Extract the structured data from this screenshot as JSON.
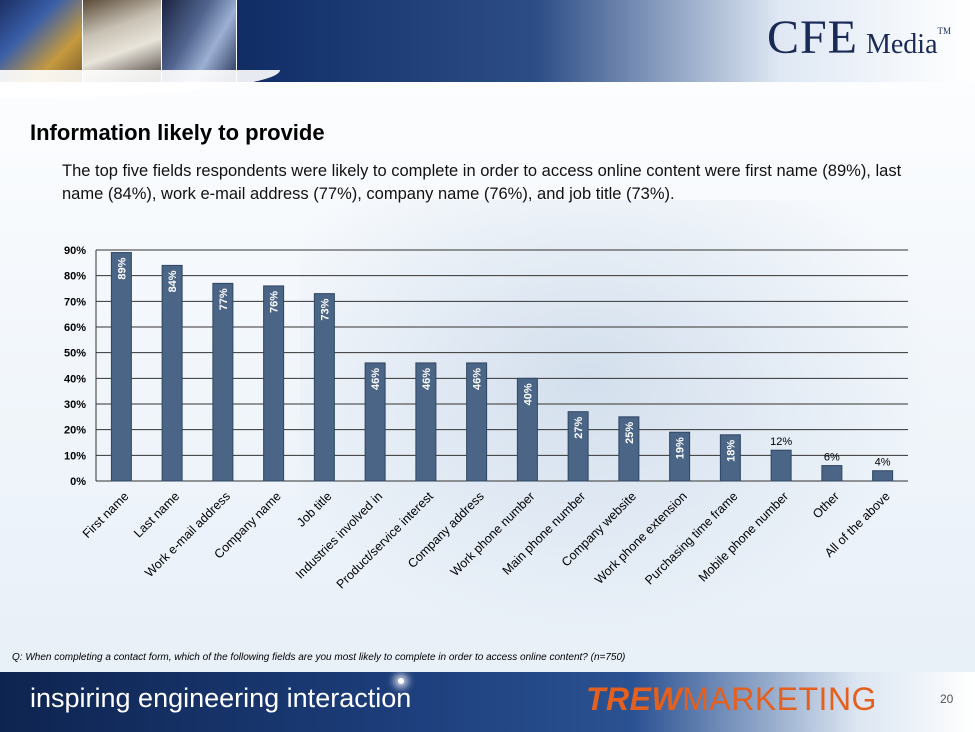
{
  "header": {
    "brand_main": "CFE",
    "brand_sub": "Media",
    "brand_tm": "TM"
  },
  "slide": {
    "title": "Information likely to provide",
    "summary": "The top five fields respondents were likely to complete in order to access online content were first name (89%), last name (84%), work e-mail address (77%), company name (76%), and job title (73%).",
    "footnote": "Q: When completing a contact form, which of the following fields are you most likely to complete in order to access online content? (n=750)",
    "page_number": "20"
  },
  "footer": {
    "tagline": "inspiring engineering interaction",
    "sponsor_bold": "TREW",
    "sponsor_rest": "MARKETING"
  },
  "colors": {
    "bar_fill": "#4a6586",
    "bar_stroke": "#2f4662",
    "gridline": "#333333",
    "data_label_inside": "#ffffff",
    "data_label_outside": "#000000"
  },
  "chart_data": {
    "type": "bar",
    "title": "",
    "xlabel": "",
    "ylabel": "",
    "ylim": [
      0,
      90
    ],
    "yticks": [
      0,
      10,
      20,
      30,
      40,
      50,
      60,
      70,
      80,
      90
    ],
    "ytick_labels": [
      "0%",
      "10%",
      "20%",
      "30%",
      "40%",
      "50%",
      "60%",
      "70%",
      "80%",
      "90%"
    ],
    "grid": true,
    "legend": "none",
    "categories": [
      "First name",
      "Last name",
      "Work e-mail address",
      "Company name",
      "Job title",
      "Industries involved in",
      "Product/service interest",
      "Company address",
      "Work phone number",
      "Main phone number",
      "Company website",
      "Work phone extension",
      "Purchasing time frame",
      "Mobile phone number",
      "Other",
      "All of the above"
    ],
    "values": [
      89,
      84,
      77,
      76,
      73,
      46,
      46,
      46,
      40,
      27,
      25,
      19,
      18,
      12,
      6,
      4
    ],
    "data_labels": [
      "89%",
      "84%",
      "77%",
      "76%",
      "73%",
      "46%",
      "46%",
      "46%",
      "40%",
      "27%",
      "25%",
      "19%",
      "18%",
      "12%",
      "6%",
      "4%"
    ],
    "label_inside": [
      true,
      true,
      true,
      true,
      true,
      true,
      true,
      true,
      true,
      true,
      true,
      true,
      true,
      false,
      false,
      false
    ]
  }
}
